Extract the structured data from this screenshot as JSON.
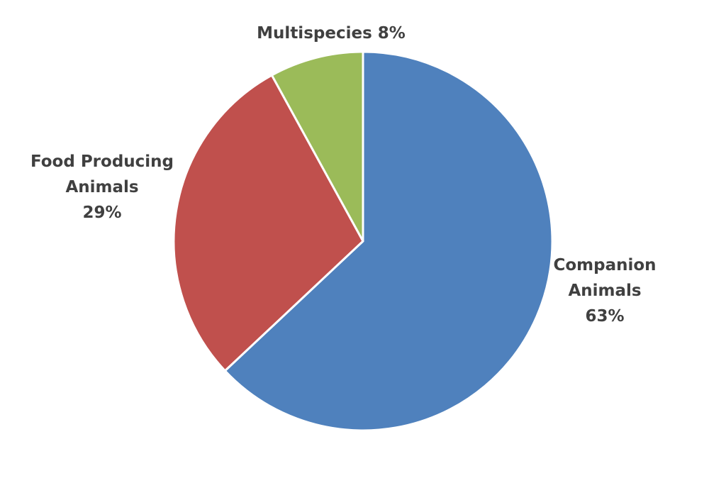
{
  "chart_data": {
    "type": "pie",
    "title": "",
    "start_angle": "12 o'clock",
    "direction": "clockwise",
    "slices": [
      {
        "name": "Companion Animals",
        "value": 63,
        "label_lines": [
          "Companion",
          "Animals",
          "63%"
        ],
        "color": "#4F81BD"
      },
      {
        "name": "Food Producing Animals",
        "value": 29,
        "label_lines": [
          "Food Producing",
          "Animals",
          "29%"
        ],
        "color": "#C0504D"
      },
      {
        "name": "Multispecies",
        "value": 8,
        "label_lines": [
          "Multispecies 8%"
        ],
        "color": "#9BBB59"
      }
    ]
  }
}
